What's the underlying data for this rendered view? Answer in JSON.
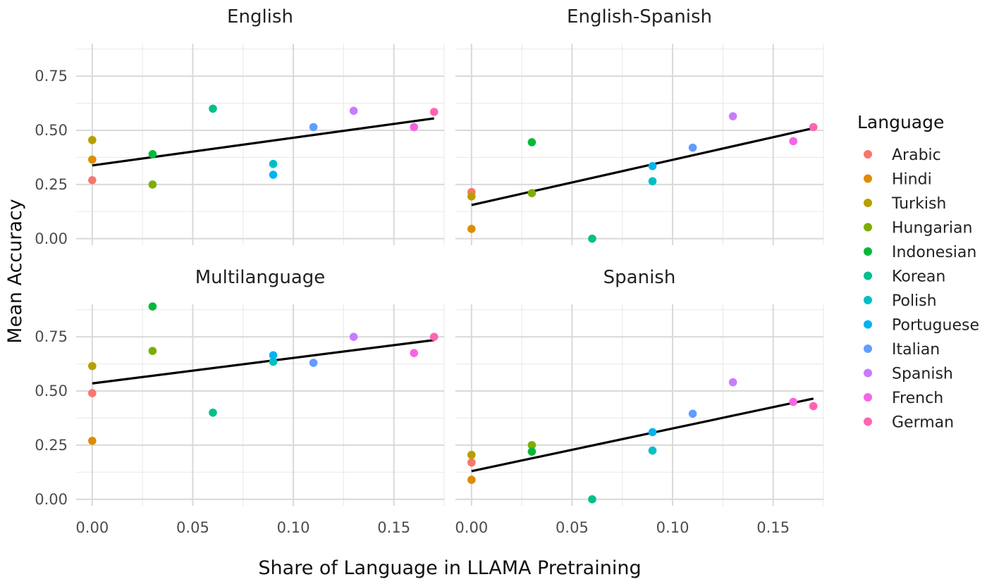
{
  "chart_data": {
    "type": "scatter",
    "xlabel": "Share of Language in LLAMA Pretraining",
    "ylabel": "Mean Accuracy",
    "xlim": [
      -0.008,
      0.175
    ],
    "ylim": [
      -0.03,
      0.9
    ],
    "x_ticks": [
      "0.00",
      "0.05",
      "0.10",
      "0.15"
    ],
    "y_ticks": [
      "0.00",
      "0.25",
      "0.50",
      "0.75"
    ],
    "grid": true,
    "legend": {
      "title": "Language",
      "position": "right",
      "entries": [
        {
          "name": "Arabic",
          "color": "#F8766D"
        },
        {
          "name": "Hindi",
          "color": "#DE8C00"
        },
        {
          "name": "Turkish",
          "color": "#B79F00"
        },
        {
          "name": "Hungarian",
          "color": "#7CAE00"
        },
        {
          "name": "Indonesian",
          "color": "#00BA38"
        },
        {
          "name": "Korean",
          "color": "#00C08B"
        },
        {
          "name": "Polish",
          "color": "#00BFC4"
        },
        {
          "name": "Portuguese",
          "color": "#00B4F0"
        },
        {
          "name": "Italian",
          "color": "#619CFF"
        },
        {
          "name": "Spanish",
          "color": "#C77CFF"
        },
        {
          "name": "French",
          "color": "#F564E3"
        },
        {
          "name": "German",
          "color": "#FF64B0"
        }
      ]
    },
    "panels": [
      {
        "title": "English",
        "trend": {
          "x": [
            0.0,
            0.17
          ],
          "y": [
            0.338,
            0.555
          ]
        },
        "points": [
          {
            "language": "Arabic",
            "x": 0.0,
            "y": 0.27
          },
          {
            "language": "Hindi",
            "x": 0.0,
            "y": 0.365
          },
          {
            "language": "Turkish",
            "x": 0.0,
            "y": 0.455
          },
          {
            "language": "Hungarian",
            "x": 0.03,
            "y": 0.25
          },
          {
            "language": "Indonesian",
            "x": 0.03,
            "y": 0.39
          },
          {
            "language": "Korean",
            "x": 0.06,
            "y": 0.6
          },
          {
            "language": "Polish",
            "x": 0.09,
            "y": 0.345
          },
          {
            "language": "Portuguese",
            "x": 0.09,
            "y": 0.295
          },
          {
            "language": "Italian",
            "x": 0.11,
            "y": 0.515
          },
          {
            "language": "Spanish",
            "x": 0.13,
            "y": 0.59
          },
          {
            "language": "French",
            "x": 0.16,
            "y": 0.515
          },
          {
            "language": "German",
            "x": 0.17,
            "y": 0.585
          }
        ]
      },
      {
        "title": "English-Spanish",
        "trend": {
          "x": [
            0.0,
            0.17
          ],
          "y": [
            0.155,
            0.51
          ]
        },
        "points": [
          {
            "language": "Arabic",
            "x": 0.0,
            "y": 0.215
          },
          {
            "language": "Hindi",
            "x": 0.0,
            "y": 0.045
          },
          {
            "language": "Turkish",
            "x": 0.0,
            "y": 0.195
          },
          {
            "language": "Hungarian",
            "x": 0.03,
            "y": 0.21
          },
          {
            "language": "Indonesian",
            "x": 0.03,
            "y": 0.445
          },
          {
            "language": "Korean",
            "x": 0.06,
            "y": 0.0
          },
          {
            "language": "Polish",
            "x": 0.09,
            "y": 0.265
          },
          {
            "language": "Portuguese",
            "x": 0.09,
            "y": 0.335
          },
          {
            "language": "Italian",
            "x": 0.11,
            "y": 0.42
          },
          {
            "language": "Spanish",
            "x": 0.13,
            "y": 0.565
          },
          {
            "language": "French",
            "x": 0.16,
            "y": 0.45
          },
          {
            "language": "German",
            "x": 0.17,
            "y": 0.515
          }
        ]
      },
      {
        "title": "Multilanguage",
        "trend": {
          "x": [
            0.0,
            0.17
          ],
          "y": [
            0.535,
            0.735
          ]
        },
        "points": [
          {
            "language": "Arabic",
            "x": 0.0,
            "y": 0.49
          },
          {
            "language": "Hindi",
            "x": 0.0,
            "y": 0.27
          },
          {
            "language": "Turkish",
            "x": 0.0,
            "y": 0.615
          },
          {
            "language": "Hungarian",
            "x": 0.03,
            "y": 0.685
          },
          {
            "language": "Indonesian",
            "x": 0.03,
            "y": 0.89
          },
          {
            "language": "Korean",
            "x": 0.06,
            "y": 0.4
          },
          {
            "language": "Polish",
            "x": 0.09,
            "y": 0.635
          },
          {
            "language": "Portuguese",
            "x": 0.09,
            "y": 0.665
          },
          {
            "language": "Italian",
            "x": 0.11,
            "y": 0.63
          },
          {
            "language": "Spanish",
            "x": 0.13,
            "y": 0.75
          },
          {
            "language": "French",
            "x": 0.16,
            "y": 0.675
          },
          {
            "language": "German",
            "x": 0.17,
            "y": 0.75
          }
        ]
      },
      {
        "title": "Spanish",
        "trend": {
          "x": [
            0.0,
            0.17
          ],
          "y": [
            0.13,
            0.465
          ]
        },
        "points": [
          {
            "language": "Arabic",
            "x": 0.0,
            "y": 0.17
          },
          {
            "language": "Hindi",
            "x": 0.0,
            "y": 0.09
          },
          {
            "language": "Turkish",
            "x": 0.0,
            "y": 0.205
          },
          {
            "language": "Hungarian",
            "x": 0.03,
            "y": 0.25
          },
          {
            "language": "Indonesian",
            "x": 0.03,
            "y": 0.22
          },
          {
            "language": "Korean",
            "x": 0.06,
            "y": 0.0
          },
          {
            "language": "Polish",
            "x": 0.09,
            "y": 0.225
          },
          {
            "language": "Portuguese",
            "x": 0.09,
            "y": 0.31
          },
          {
            "language": "Italian",
            "x": 0.11,
            "y": 0.395
          },
          {
            "language": "Spanish",
            "x": 0.13,
            "y": 0.54
          },
          {
            "language": "French",
            "x": 0.16,
            "y": 0.45
          },
          {
            "language": "German",
            "x": 0.17,
            "y": 0.43
          }
        ]
      }
    ]
  }
}
